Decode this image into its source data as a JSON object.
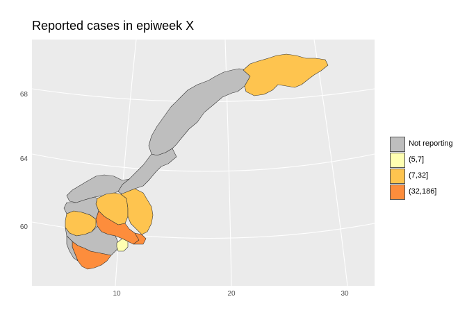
{
  "title": "Reported cases in epiweek X",
  "colors": {
    "panel_background": "#ebebeb",
    "graticule": "#ffffff",
    "region_border": "#333333",
    "tick_text": "#4d4d4d"
  },
  "axes": {
    "x_ticks": [
      "10",
      "20",
      "30"
    ],
    "y_ticks": [
      "68",
      "64",
      "60"
    ]
  },
  "legend": {
    "items": [
      {
        "label": "Not reporting",
        "color": "#bebebe"
      },
      {
        "label": "(5,7]",
        "color": "#ffffb2"
      },
      {
        "label": "(7,32]",
        "color": "#fec44f"
      },
      {
        "label": "(32,186]",
        "color": "#fd8d3c"
      }
    ]
  }
}
